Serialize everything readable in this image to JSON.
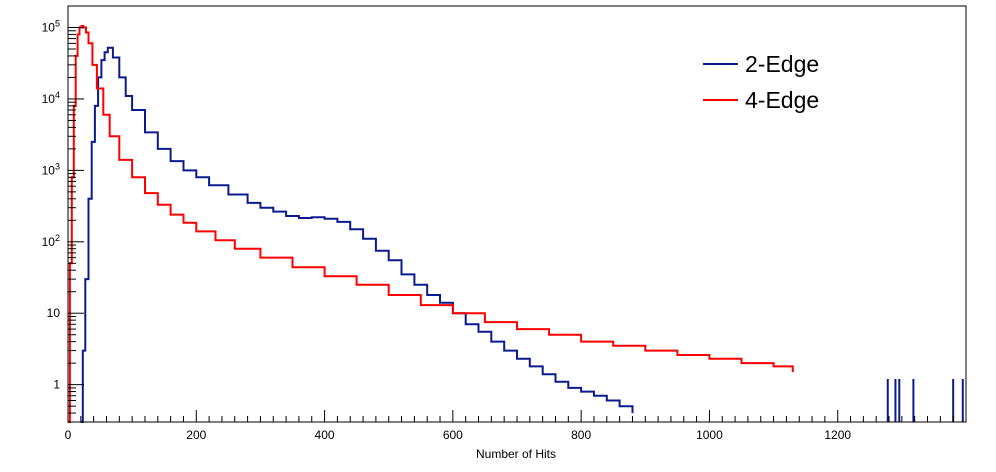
{
  "chart_data": {
    "type": "line",
    "title": "",
    "xlabel": "Number of Hits",
    "ylabel": "",
    "xlim": [
      0,
      1400
    ],
    "ylim": [
      0.3,
      200000
    ],
    "yscale": "log",
    "grid": false,
    "legend_position": "top-right",
    "x_ticks": [
      0,
      200,
      400,
      600,
      800,
      1000,
      1200
    ],
    "x_tick_labels": [
      "0",
      "200",
      "400",
      "600",
      "800",
      "1000",
      "1200"
    ],
    "y_ticks": [
      {
        "value": 1,
        "label": "1"
      },
      {
        "value": 10,
        "label": "10"
      },
      {
        "value": 100,
        "base": "10",
        "exp": "2"
      },
      {
        "value": 1000,
        "base": "10",
        "exp": "3"
      },
      {
        "value": 10000,
        "base": "10",
        "exp": "4"
      },
      {
        "value": 100000,
        "base": "10",
        "exp": "5"
      }
    ],
    "series": [
      {
        "name": "2-Edge",
        "color": "#0b1a8e",
        "x": [
          20,
          23,
          27,
          32,
          37,
          42,
          47,
          52,
          57,
          62,
          70,
          80,
          90,
          100,
          120,
          140,
          160,
          180,
          200,
          220,
          250,
          280,
          300,
          320,
          340,
          360,
          380,
          400,
          420,
          440,
          460,
          480,
          500,
          520,
          540,
          560,
          580,
          600,
          620,
          640,
          660,
          680,
          700,
          720,
          740,
          760,
          780,
          800,
          820,
          840,
          860,
          880
        ],
        "y": [
          0.3,
          3,
          30,
          400,
          2500,
          8000,
          20000,
          35000,
          45000,
          52000,
          38000,
          20000,
          11000,
          7000,
          3400,
          2000,
          1350,
          1000,
          800,
          620,
          460,
          350,
          300,
          265,
          230,
          215,
          220,
          210,
          190,
          150,
          110,
          75,
          55,
          35,
          25,
          18,
          14,
          10,
          7,
          5.5,
          4,
          3,
          2.3,
          1.8,
          1.4,
          1.1,
          0.9,
          0.8,
          0.7,
          0.6,
          0.5,
          0.4
        ]
      },
      {
        "name": "4-Edge",
        "color": "#ff0000",
        "x": [
          0,
          3,
          6,
          9,
          12,
          15,
          18,
          21,
          24,
          28,
          32,
          38,
          45,
          55,
          65,
          80,
          100,
          120,
          140,
          160,
          180,
          200,
          230,
          260,
          300,
          350,
          400,
          450,
          500,
          550,
          600,
          650,
          700,
          750,
          800,
          850,
          900,
          950,
          1000,
          1050,
          1100,
          1130
        ],
        "y": [
          0.3,
          50,
          800,
          8000,
          40000,
          80000,
          100000,
          105000,
          100000,
          85000,
          60000,
          30000,
          14000,
          6000,
          3000,
          1400,
          800,
          480,
          330,
          240,
          185,
          140,
          105,
          80,
          60,
          44,
          33,
          25,
          18,
          13,
          10,
          7.5,
          6,
          5,
          4,
          3.5,
          3,
          2.6,
          2.3,
          2,
          1.8,
          1.5
        ]
      }
    ],
    "sparse_tail_markers": [
      {
        "series": "2-Edge",
        "x": [
          1278,
          1290,
          1296,
          1318,
          1380,
          1395
        ]
      }
    ]
  }
}
